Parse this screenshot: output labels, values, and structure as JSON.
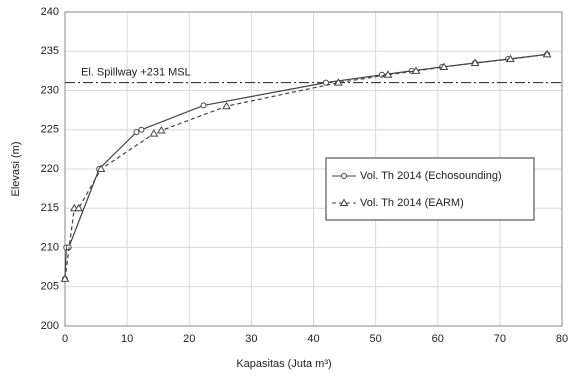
{
  "chart_data": {
    "type": "line",
    "xlabel": "Kapasitas (Juta m³)",
    "ylabel": "Elevasi (m)",
    "xlim": [
      0,
      80
    ],
    "xticks": [
      0,
      10,
      20,
      30,
      40,
      50,
      60,
      70,
      80
    ],
    "ylim": [
      200,
      240
    ],
    "yticks": [
      200,
      205,
      210,
      215,
      220,
      225,
      230,
      235,
      240
    ],
    "grid": true,
    "legend": "right",
    "annotation": {
      "label": "El. Spillway +231 MSL",
      "value": 231
    },
    "series": [
      {
        "name": "Vol. Th 2014 (Echosounding)",
        "color": "#444444",
        "marker": "circle",
        "dash": "solid",
        "x": [
          0,
          0.2,
          0.6,
          5.5,
          11.5,
          12.3,
          22.3,
          42,
          51,
          55.8,
          60.7,
          66,
          71.3,
          77.6
        ],
        "values": [
          206,
          210,
          210,
          220,
          224.7,
          225,
          228.1,
          231,
          232,
          232.5,
          233,
          233.5,
          234,
          234.6
        ]
      },
      {
        "name": "Vol. Th 2014 (EARM)",
        "color": "#444444",
        "marker": "triangle",
        "dash": "dashed",
        "x": [
          0,
          1.5,
          2.2,
          5.8,
          14.3,
          15.5,
          26,
          44,
          52,
          56.5,
          61,
          66,
          71.7,
          77.6
        ],
        "values": [
          206,
          215,
          215,
          220,
          224.5,
          224.9,
          228,
          231,
          232,
          232.5,
          233,
          233.5,
          234,
          234.6
        ]
      }
    ]
  }
}
